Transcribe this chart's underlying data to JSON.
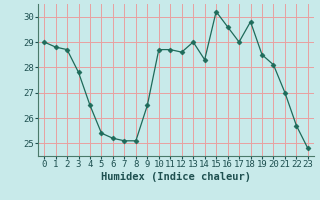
{
  "x": [
    0,
    1,
    2,
    3,
    4,
    5,
    6,
    7,
    8,
    9,
    10,
    11,
    12,
    13,
    14,
    15,
    16,
    17,
    18,
    19,
    20,
    21,
    22,
    23
  ],
  "y": [
    29.0,
    28.8,
    28.7,
    27.8,
    26.5,
    25.4,
    25.2,
    25.1,
    25.1,
    26.5,
    28.7,
    28.7,
    28.6,
    29.0,
    28.3,
    30.2,
    29.6,
    29.0,
    29.8,
    28.5,
    28.1,
    27.0,
    25.7,
    24.8
  ],
  "xlabel": "Humidex (Indice chaleur)",
  "xlim": [
    -0.5,
    23.5
  ],
  "ylim": [
    24.5,
    30.5
  ],
  "yticks": [
    25,
    26,
    27,
    28,
    29,
    30
  ],
  "xticks": [
    0,
    1,
    2,
    3,
    4,
    5,
    6,
    7,
    8,
    9,
    10,
    11,
    12,
    13,
    14,
    15,
    16,
    17,
    18,
    19,
    20,
    21,
    22,
    23
  ],
  "line_color": "#1e6b5a",
  "marker": "D",
  "marker_size": 2.5,
  "bg_color": "#c8eaea",
  "grid_color": "#e8a0a0",
  "spine_color": "#4a7a6a",
  "tick_color": "#1e5050",
  "xlabel_fontsize": 7.5,
  "tick_fontsize": 6.5,
  "xlabel_fontweight": "bold"
}
